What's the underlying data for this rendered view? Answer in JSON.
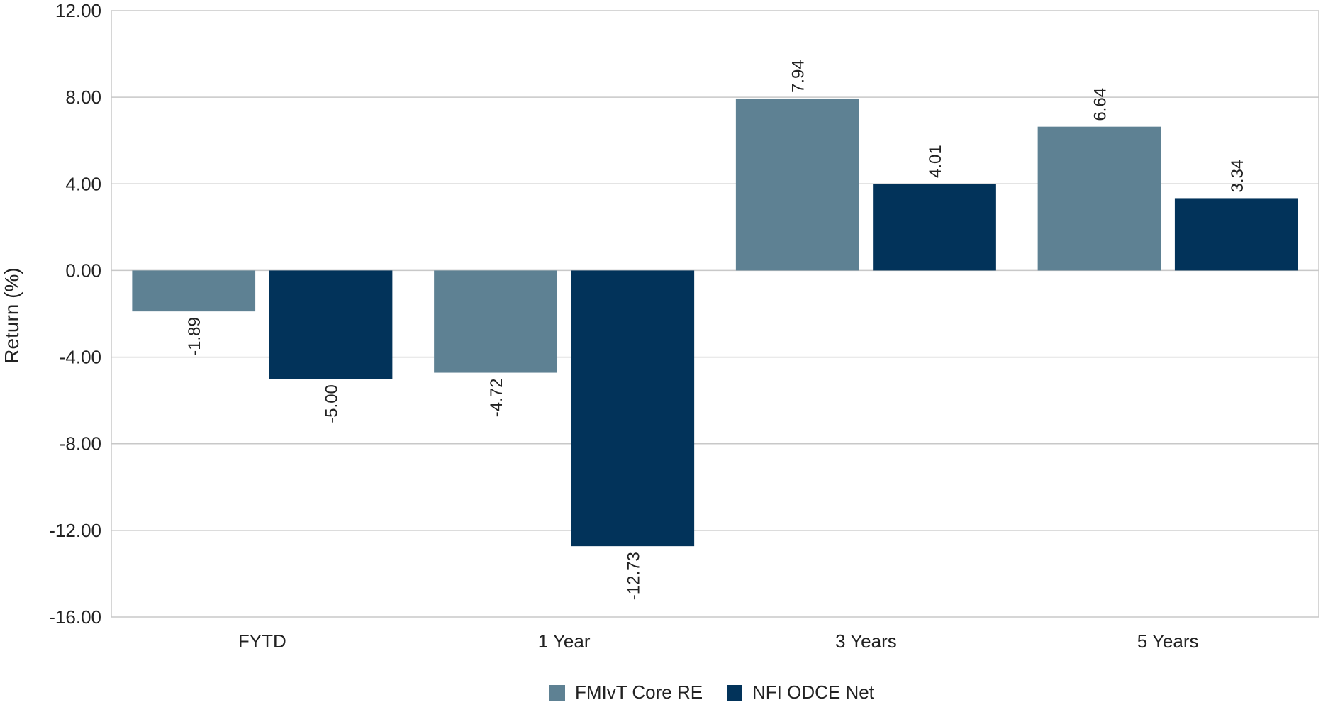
{
  "chart_data": {
    "type": "bar",
    "title": "",
    "xlabel": "",
    "ylabel": "Return (%)",
    "categories": [
      "FYTD",
      "1 Year",
      "3 Years",
      "5 Years"
    ],
    "series": [
      {
        "name": "FMIvT Core RE",
        "color": "#5E8193",
        "values": [
          -1.89,
          -4.72,
          7.94,
          6.64
        ],
        "labels": [
          "-1.89",
          "-4.72",
          "7.94",
          "6.64"
        ]
      },
      {
        "name": "NFI ODCE Net",
        "color": "#02335A",
        "values": [
          -5.0,
          -12.73,
          4.01,
          3.34
        ],
        "labels": [
          "-5.00",
          "-12.73",
          "4.01",
          "3.34"
        ]
      }
    ],
    "ylim": [
      -16,
      12
    ],
    "yticks": [
      12,
      8,
      4,
      0,
      -4,
      -8,
      -12,
      -16
    ],
    "ytick_labels": [
      "12.00",
      "8.00",
      "4.00",
      "0.00",
      "-4.00",
      "-8.00",
      "-12.00",
      "-16.00"
    ],
    "grid": true,
    "legend_position": "bottom-center",
    "data_label_orientation": "vertical"
  }
}
